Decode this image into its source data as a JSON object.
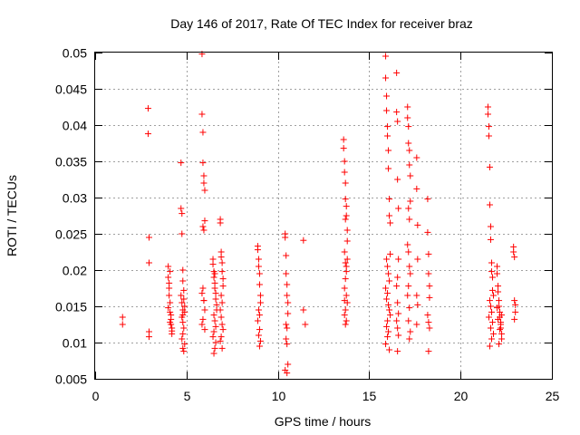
{
  "chart_data": {
    "type": "scatter",
    "title": "Day 146 of 2017, Rate Of TEC Index for receiver braz",
    "xlabel": "GPS time / hours",
    "ylabel": "ROTI / TECUs",
    "xlim": [
      0,
      25
    ],
    "ylim": [
      0.005,
      0.05
    ],
    "xticks": [
      0,
      5,
      10,
      15,
      20,
      25
    ],
    "xtick_labels": [
      "0",
      "5",
      "10",
      "15",
      "20",
      "25"
    ],
    "yticks": [
      0.005,
      0.01,
      0.015,
      0.02,
      0.025,
      0.03,
      0.035,
      0.04,
      0.045,
      0.05
    ],
    "ytick_labels": [
      "0.005",
      "0.01",
      "0.015",
      "0.02",
      "0.025",
      "0.03",
      "0.035",
      "0.04",
      "0.045",
      "0.05"
    ],
    "grid": true,
    "marker": "+",
    "marker_color": "#ff0000",
    "series": [
      {
        "x": [
          1.5,
          1.5,
          2.9,
          2.9,
          2.95,
          2.95,
          2.95,
          2.95,
          4.0,
          4.0,
          4.05,
          4.05,
          4.1,
          4.1,
          4.15,
          4.15,
          4.2,
          4.2,
          4.1,
          4.05,
          4.0,
          4.15,
          4.1,
          4.2,
          4.7,
          4.7,
          4.75,
          4.75,
          4.8,
          4.8,
          4.85,
          4.85,
          4.9,
          4.9,
          4.75,
          4.8,
          4.85,
          4.8,
          4.75,
          4.9,
          4.8,
          4.85,
          4.7,
          4.75,
          4.8,
          4.8,
          5.85,
          5.85,
          5.9,
          5.9,
          5.95,
          5.95,
          6.0,
          6.0,
          5.9,
          5.95,
          5.9,
          5.85,
          5.95,
          6.0,
          5.9,
          5.85,
          6.0,
          5.95,
          6.45,
          6.45,
          6.5,
          6.5,
          6.55,
          6.55,
          6.6,
          6.6,
          6.65,
          6.65,
          6.5,
          6.55,
          6.6,
          6.5,
          6.45,
          6.6,
          6.55,
          6.5,
          6.55,
          6.85,
          6.85,
          6.9,
          6.9,
          6.95,
          6.95,
          7.0,
          7.0,
          6.9,
          6.95,
          6.85,
          6.9,
          6.95,
          7.0,
          6.9,
          6.85,
          6.95,
          8.9,
          8.9,
          8.95,
          8.95,
          9.0,
          9.0,
          9.05,
          9.05,
          8.95,
          9.0,
          8.9,
          9.0,
          8.95,
          9.05,
          9.0,
          10.4,
          10.4,
          10.45,
          10.45,
          10.5,
          10.5,
          10.55,
          10.55,
          10.45,
          10.5,
          10.45,
          10.5,
          10.55,
          10.4,
          10.5,
          11.4,
          11.4,
          11.5,
          13.6,
          13.6,
          13.65,
          13.65,
          13.7,
          13.7,
          13.75,
          13.75,
          13.8,
          13.8,
          13.65,
          13.7,
          13.75,
          13.7,
          13.65,
          13.75,
          13.8,
          13.7,
          13.65,
          13.75,
          13.7,
          13.8,
          13.75,
          13.65,
          13.7,
          15.9,
          15.9,
          15.95,
          15.95,
          16.0,
          16.0,
          16.05,
          16.05,
          16.1,
          16.1,
          16.15,
          16.15,
          15.95,
          16.0,
          16.05,
          16.1,
          15.9,
          16.0,
          15.95,
          16.05,
          16.1,
          16.15,
          16.0,
          15.95,
          16.05,
          16.0,
          15.9,
          16.1,
          16.5,
          16.5,
          16.55,
          16.55,
          16.6,
          16.6,
          16.55,
          16.5,
          16.55,
          16.6,
          16.5,
          16.55,
          16.6,
          16.55,
          17.1,
          17.1,
          17.15,
          17.15,
          17.2,
          17.2,
          17.25,
          17.25,
          17.15,
          17.2,
          17.1,
          17.15,
          17.2,
          17.25,
          17.15,
          17.1,
          17.2,
          17.15,
          17.25,
          17.2,
          17.6,
          17.6,
          17.65,
          17.65,
          17.6,
          17.65,
          17.6,
          18.2,
          18.2,
          18.25,
          18.25,
          18.3,
          18.3,
          18.2,
          18.25,
          18.3,
          18.25,
          21.5,
          21.5,
          21.55,
          21.55,
          21.6,
          21.6,
          21.65,
          21.65,
          21.7,
          21.7,
          21.75,
          21.75,
          21.8,
          21.6,
          21.65,
          21.7,
          21.55,
          21.75,
          21.65,
          21.8,
          21.7,
          21.6,
          22.0,
          22.0,
          22.05,
          22.05,
          22.1,
          22.1,
          22.15,
          22.15,
          22.2,
          22.2,
          22.25,
          22.25,
          22.1,
          22.05,
          22.2,
          22.15,
          22.0,
          22.25,
          22.9,
          22.9,
          22.95,
          22.95,
          23.0,
          23.0,
          22.95
        ],
        "y": [
          0.0135,
          0.0125,
          0.0423,
          0.0388,
          0.0245,
          0.021,
          0.0115,
          0.0108,
          0.0205,
          0.019,
          0.0182,
          0.0165,
          0.0155,
          0.0142,
          0.0132,
          0.0125,
          0.012,
          0.0112,
          0.0198,
          0.0175,
          0.0148,
          0.0138,
          0.0128,
          0.0116,
          0.0348,
          0.0285,
          0.0278,
          0.025,
          0.02,
          0.0185,
          0.0172,
          0.016,
          0.015,
          0.0142,
          0.0135,
          0.0128,
          0.012,
          0.0112,
          0.0105,
          0.0098,
          0.0092,
          0.0088,
          0.0165,
          0.0155,
          0.0145,
          0.0138,
          0.0498,
          0.0415,
          0.039,
          0.0348,
          0.033,
          0.032,
          0.031,
          0.0268,
          0.026,
          0.0255,
          0.0175,
          0.0168,
          0.0158,
          0.0145,
          0.0132,
          0.0125,
          0.0118,
          0.0158,
          0.0215,
          0.0208,
          0.0198,
          0.019,
          0.0182,
          0.0175,
          0.0168,
          0.016,
          0.0152,
          0.0145,
          0.0138,
          0.013,
          0.0122,
          0.0115,
          0.0108,
          0.01,
          0.0092,
          0.0085,
          0.0195,
          0.027,
          0.0265,
          0.0225,
          0.0218,
          0.021,
          0.0198,
          0.0188,
          0.0178,
          0.0165,
          0.0155,
          0.0145,
          0.0135,
          0.0125,
          0.0118,
          0.0108,
          0.0102,
          0.0092,
          0.0233,
          0.0228,
          0.0215,
          0.0205,
          0.0195,
          0.018,
          0.0165,
          0.0155,
          0.0145,
          0.0138,
          0.013,
          0.0118,
          0.011,
          0.0102,
          0.0095,
          0.025,
          0.0245,
          0.022,
          0.0195,
          0.018,
          0.0165,
          0.0155,
          0.014,
          0.0125,
          0.012,
          0.0105,
          0.0098,
          0.007,
          0.0062,
          0.0058,
          0.0241,
          0.0145,
          0.0125,
          0.038,
          0.0368,
          0.035,
          0.0335,
          0.032,
          0.0298,
          0.0288,
          0.0275,
          0.0255,
          0.024,
          0.0225,
          0.021,
          0.0198,
          0.0188,
          0.0175,
          0.0165,
          0.0155,
          0.0145,
          0.0138,
          0.013,
          0.0125,
          0.0215,
          0.0205,
          0.0158,
          0.027,
          0.0495,
          0.0465,
          0.044,
          0.042,
          0.0398,
          0.0385,
          0.0365,
          0.034,
          0.0298,
          0.0275,
          0.0265,
          0.0222,
          0.0215,
          0.0205,
          0.0195,
          0.0185,
          0.0175,
          0.0168,
          0.016,
          0.0152,
          0.0145,
          0.0138,
          0.013,
          0.0122,
          0.0115,
          0.0108,
          0.0098,
          0.009,
          0.0472,
          0.0418,
          0.0405,
          0.0325,
          0.0285,
          0.0215,
          0.019,
          0.0178,
          0.0155,
          0.014,
          0.013,
          0.012,
          0.011,
          0.0088,
          0.0425,
          0.041,
          0.0398,
          0.0375,
          0.0365,
          0.0345,
          0.033,
          0.0295,
          0.0285,
          0.027,
          0.0235,
          0.0225,
          0.0205,
          0.0195,
          0.0178,
          0.0165,
          0.0148,
          0.013,
          0.0115,
          0.0105,
          0.0355,
          0.0312,
          0.0262,
          0.0215,
          0.0165,
          0.0152,
          0.0125,
          0.0298,
          0.0252,
          0.0222,
          0.0195,
          0.0178,
          0.0162,
          0.0138,
          0.0128,
          0.012,
          0.0088,
          0.0425,
          0.0415,
          0.0398,
          0.0385,
          0.0342,
          0.029,
          0.026,
          0.0242,
          0.021,
          0.0198,
          0.019,
          0.0172,
          0.0165,
          0.0158,
          0.015,
          0.0142,
          0.0135,
          0.0128,
          0.012,
          0.0112,
          0.0105,
          0.0095,
          0.0205,
          0.0195,
          0.0178,
          0.017,
          0.0158,
          0.015,
          0.0142,
          0.0135,
          0.0128,
          0.012,
          0.0112,
          0.0105,
          0.0098,
          0.0132,
          0.0125,
          0.0118,
          0.0148,
          0.0138,
          0.0232,
          0.0225,
          0.0218,
          0.0158,
          0.0152,
          0.0142,
          0.0132
        ]
      }
    ]
  }
}
